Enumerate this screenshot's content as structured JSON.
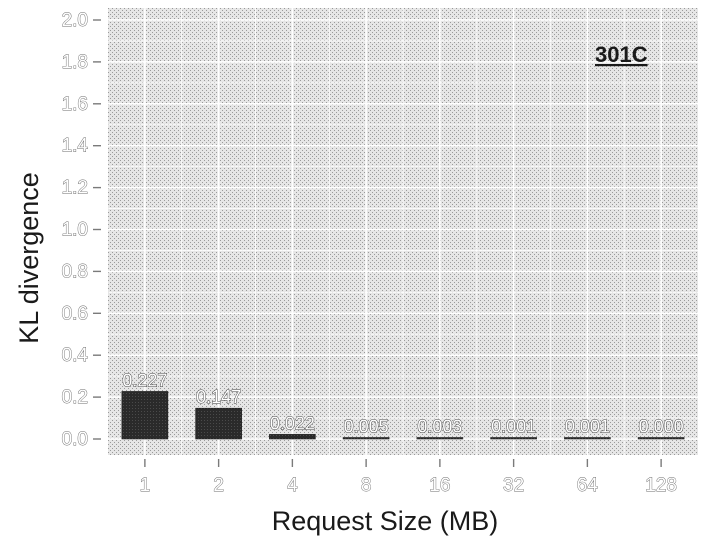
{
  "figure_label": "301C",
  "chart_data": {
    "type": "bar",
    "categories": [
      "1",
      "2",
      "4",
      "8",
      "16",
      "32",
      "64",
      "128"
    ],
    "values": [
      0.227,
      0.147,
      0.022,
      0.005,
      0.003,
      0.001,
      0.001,
      0.0
    ],
    "data_labels": [
      "0.227",
      "0.147",
      "0.022",
      "0.005",
      "0.003",
      "0.001",
      "0.001",
      "0.000"
    ],
    "title": "",
    "xlabel": "Request Size (MB)",
    "ylabel": "KL divergence",
    "ylim": [
      0,
      2.0
    ],
    "yticks": [
      "0.0",
      "0.2",
      "0.4",
      "0.6",
      "0.8",
      "1.0",
      "1.2",
      "1.4",
      "1.6",
      "1.8",
      "2.0"
    ],
    "grid": true,
    "legend": "none",
    "colors": {
      "bar": "#2e2e2e",
      "panel": "#dcdcdc",
      "gridline": "#ffffff"
    }
  }
}
